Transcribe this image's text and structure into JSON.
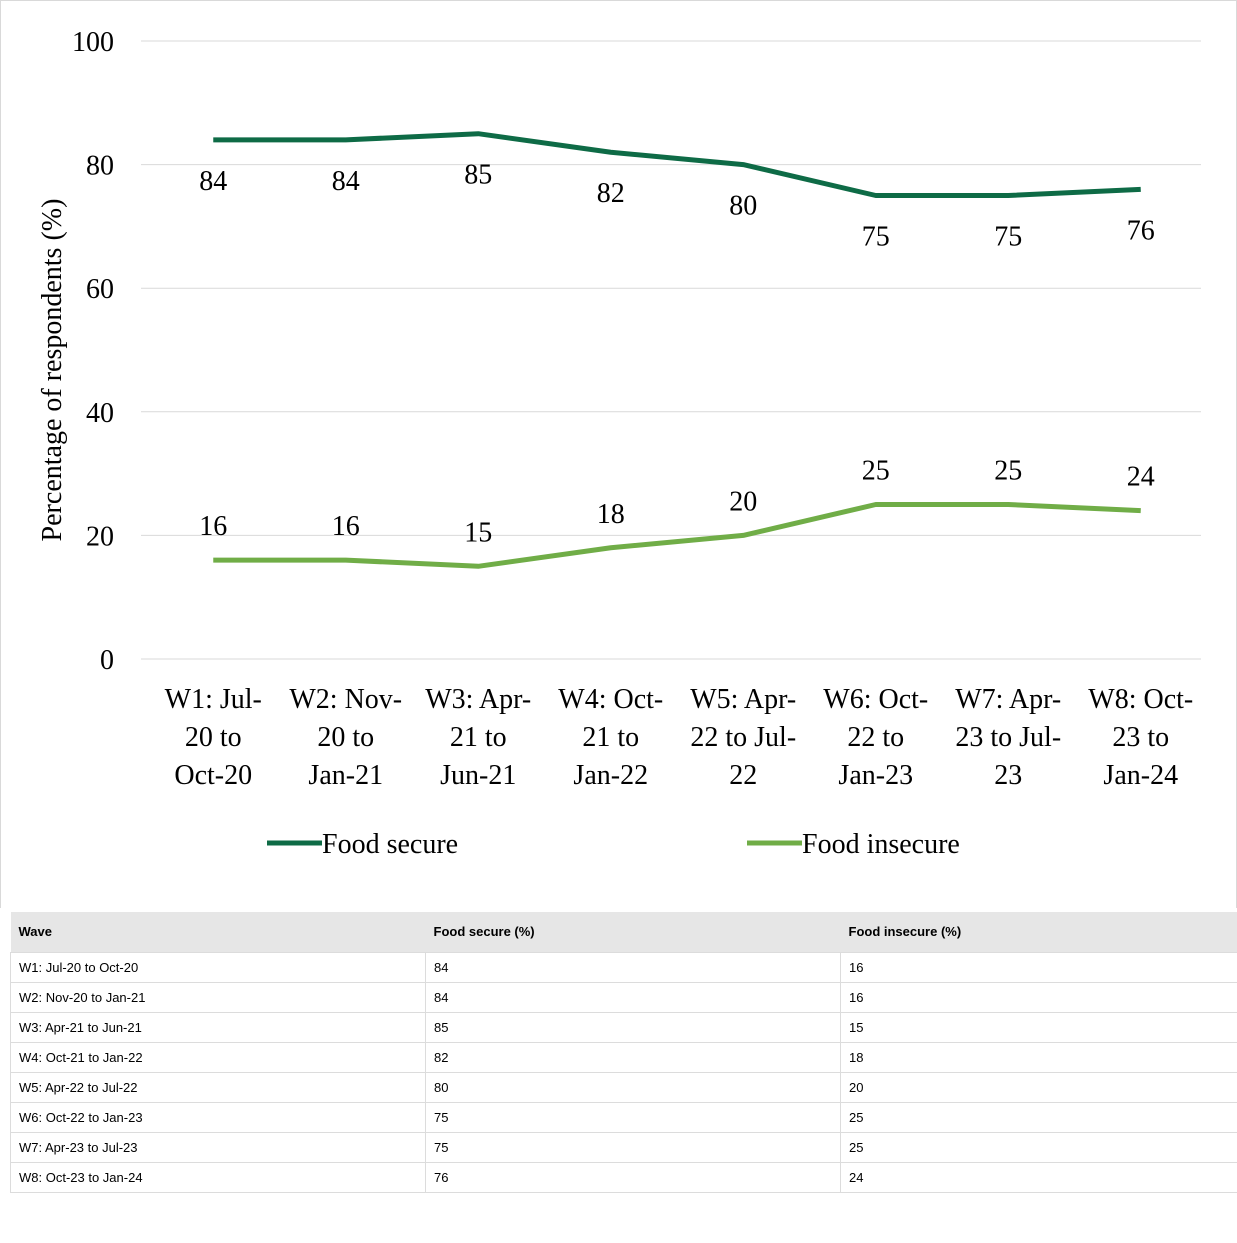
{
  "chart_data": {
    "type": "line",
    "title": "",
    "xlabel": "",
    "ylabel": "Percentage of respondents (%)",
    "ylim": [
      0,
      100
    ],
    "yticks": [
      0,
      20,
      40,
      60,
      80,
      100
    ],
    "grid": true,
    "legend_position": "bottom",
    "categories": [
      [
        "W1: Jul-",
        "20 to",
        "Oct-20"
      ],
      [
        "W2: Nov-",
        "20 to",
        "Jan-21"
      ],
      [
        "W3: Apr-",
        "21 to",
        "Jun-21"
      ],
      [
        "W4: Oct-",
        "21 to",
        "Jan-22"
      ],
      [
        "W5: Apr-",
        "22 to Jul-",
        "22"
      ],
      [
        "W6: Oct-",
        "22 to",
        "Jan-23"
      ],
      [
        "W7: Apr-",
        "23 to Jul-",
        "23"
      ],
      [
        "W8: Oct-",
        "23 to",
        "Jan-24"
      ]
    ],
    "series": [
      {
        "name": "Food secure",
        "color": "#0e6b46",
        "values": [
          84,
          84,
          85,
          82,
          80,
          75,
          75,
          76
        ]
      },
      {
        "name": "Food insecure",
        "color": "#70ad47",
        "values": [
          16,
          16,
          15,
          18,
          20,
          25,
          25,
          24
        ]
      }
    ]
  },
  "table": {
    "headers": [
      "Wave",
      "Food secure (%)",
      "Food insecure (%)"
    ],
    "rows": [
      [
        "W1: Jul-20 to Oct-20",
        "84",
        "16"
      ],
      [
        "W2: Nov-20 to Jan-21",
        "84",
        "16"
      ],
      [
        "W3: Apr-21 to Jun-21",
        "85",
        "15"
      ],
      [
        "W4: Oct-21 to Jan-22",
        "82",
        "18"
      ],
      [
        "W5: Apr-22 to Jul-22",
        "80",
        "20"
      ],
      [
        "W6: Oct-22 to Jan-23",
        "75",
        "25"
      ],
      [
        "W7: Apr-23 to Jul-23",
        "75",
        "25"
      ],
      [
        "W8: Oct-23 to Jan-24",
        "76",
        "24"
      ]
    ]
  }
}
